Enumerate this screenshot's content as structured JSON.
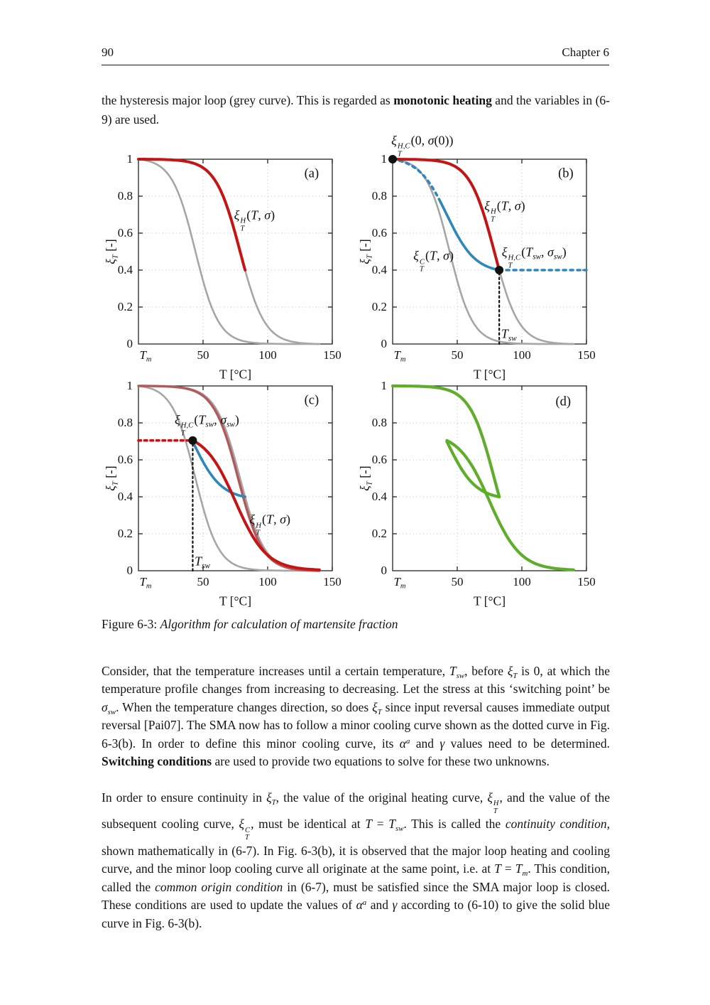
{
  "header": {
    "page_number": "90",
    "chapter": "Chapter 6"
  },
  "intro_paragraph_html": "the hysteresis major loop (grey curve).  This is regarded as <b>monotonic heating</b> and the variables in (6-9) are used.",
  "figure": {
    "caption_html": "Figure 6-3: <i>Algorithm for calculation of martensite fraction</i>"
  },
  "paragraphs_html": [
    "Consider, that the temperature increases until a certain temperature, <i>T</i><sub><i>sw</i></sub>, before <i>ξ</i><sub><i>T</i></sub> is 0, at which the temperature profile changes from increasing to decreasing. Let the stress at this ‘switching point’ be <i>σ</i><sub><i>sw</i></sub>. When the temperature changes direction, so does <i>ξ</i><sub><i>T</i></sub> since input reversal causes immediate output reversal [Pai07]. The SMA now has to follow a minor cooling curve shown as the dotted curve in Fig. 6-3(b). In order to define this minor cooling curve, its <i>α</i><sup><i>a</i></sup> and <i>γ</i> values need to be determined. <b>Switching conditions</b> are used to provide two equations to solve for these two unknowns.",
    "In order to ensure continuity in <i>ξ</i><sub><i>T</i></sub>, the value of the original heating curve, <i>ξ</i><span class='ss'><span>H</span><span>T</span></span>, and the value of the subsequent cooling curve, <i>ξ</i><span class='ss'><span>C</span><span>T</span></span>, must be identical at <i>T</i> = <i>T</i><sub><i>sw</i></sub>. This is called the <i>continuity condition</i>, shown mathematically in (6-7). In Fig. 6-3(b), it is observed that the major loop heating and cooling curve, and the minor loop cooling curve all originate at the same point, i.e. at <i>T</i> = <i>T</i><sub><i>m</i></sub>. This condition, called the <i>common origin condition</i> in (6-7), must be satisfied since the SMA major loop is closed. These conditions are used to update the values of <i>α</i><sup><i>a</i></sup> and <i>γ</i> according to (6-10) to give the solid blue curve in Fig. 6-3(b)."
  ],
  "colors": {
    "red": "#c51414",
    "faded_red": "#b2595b",
    "blue": "#2e86bb",
    "green": "#5fae2b",
    "grey": "#a6a6a6",
    "black": "#111111",
    "grid": "#bdbdbd"
  },
  "chart_data": [
    {
      "id": "a",
      "type": "line",
      "corner_label": "(a)",
      "corner_pos": [
        134,
        0.92
      ],
      "xlabel": "T [°C]",
      "ylabel_html": "<i>ξ</i><sub><i>T</i></sub> [-]",
      "xlim": [
        0,
        150
      ],
      "ylim": [
        0,
        1
      ],
      "x_ticks": [
        {
          "v": 0,
          "html": "<i>T</i><sub><i>m</i></sub>",
          "dx": 10
        },
        {
          "v": 50,
          "html": "50"
        },
        {
          "v": 100,
          "html": "100"
        },
        {
          "v": 150,
          "html": "150"
        }
      ],
      "y_ticks": [
        {
          "v": 0,
          "html": "0"
        },
        {
          "v": 0.2,
          "html": "0.2"
        },
        {
          "v": 0.4,
          "html": "0.4"
        },
        {
          "v": 0.6,
          "html": "0.6"
        },
        {
          "v": 0.8,
          "html": "0.8"
        },
        {
          "v": 1,
          "html": "1"
        }
      ],
      "x_grid": [
        50,
        100
      ],
      "y_grid": [
        0.2,
        0.4,
        0.6,
        0.8
      ],
      "curves": [
        {
          "name": "major-cooling-curve",
          "color": "grey",
          "width": 2.6,
          "model": {
            "type": "logistic",
            "c": 44,
            "s": 9,
            "from": 0,
            "to": 140,
            "y0": 1,
            "y1": 0
          }
        },
        {
          "name": "major-heating-curve",
          "color": "grey",
          "width": 2.6,
          "model": {
            "type": "logistic",
            "c": 78.7,
            "s": 9.5,
            "from": 0,
            "to": 140,
            "y0": 1,
            "y1": 0
          }
        },
        {
          "name": "active-heating-curve",
          "color": "red",
          "width": 4,
          "model": {
            "type": "logistic",
            "c": 78.7,
            "s": 9.5,
            "from": 0,
            "to": 82.5,
            "y0": 1,
            "y1": 0.4
          }
        }
      ],
      "annotations": [
        {
          "name": "heating-curve-label",
          "html": "<i>ξ</i><span class='ss'><span>H</span><span>T</span></span>(<i>T</i>, <i>σ</i>)",
          "x": 74,
          "y": 0.67,
          "anchor": "left"
        }
      ]
    },
    {
      "id": "b",
      "type": "line",
      "corner_label": "(b)",
      "corner_pos": [
        134,
        0.92
      ],
      "xlabel": "T [°C]",
      "ylabel_html": "<i>ξ</i><sub><i>T</i></sub> [-]",
      "xlim": [
        0,
        150
      ],
      "ylim": [
        0,
        1
      ],
      "x_ticks": [
        {
          "v": 0,
          "html": "<i>T</i><sub><i>m</i></sub>",
          "dx": 10
        },
        {
          "v": 50,
          "html": "50"
        },
        {
          "v": 100,
          "html": "100"
        },
        {
          "v": 150,
          "html": "150"
        }
      ],
      "y_ticks": [
        {
          "v": 0,
          "html": "0"
        },
        {
          "v": 0.2,
          "html": "0.2"
        },
        {
          "v": 0.4,
          "html": "0.4"
        },
        {
          "v": 0.6,
          "html": "0.6"
        },
        {
          "v": 0.8,
          "html": "0.8"
        },
        {
          "v": 1,
          "html": "1"
        }
      ],
      "x_grid": [
        50,
        100
      ],
      "y_grid": [
        0.2,
        0.4,
        0.6,
        0.8
      ],
      "curves": [
        {
          "name": "major-cooling-curve",
          "color": "grey",
          "width": 2.6,
          "model": {
            "type": "logistic",
            "c": 44,
            "s": 9,
            "from": 0,
            "to": 140,
            "y0": 1,
            "y1": 0
          }
        },
        {
          "name": "major-heating-curve",
          "color": "grey",
          "width": 2.6,
          "model": {
            "type": "logistic",
            "c": 78.7,
            "s": 9.5,
            "from": 0,
            "to": 140,
            "y0": 1,
            "y1": 0
          }
        },
        {
          "name": "minor-cooling-curve-dotted",
          "color": "blue",
          "width": 3.6,
          "dash": "4 6",
          "model": {
            "type": "logistic",
            "c": 42,
            "s": 11,
            "from": 0,
            "to": 37,
            "norm_from": 0,
            "norm_to": 82.5,
            "y0": 1,
            "y1": 0.4
          }
        },
        {
          "name": "minor-cooling-curve-solid",
          "color": "blue",
          "width": 3.6,
          "model": {
            "type": "logistic",
            "c": 42,
            "s": 11,
            "from": 37,
            "to": 82.5,
            "norm_from": 0,
            "norm_to": 82.5,
            "y0": 1,
            "y1": 0.4
          }
        },
        {
          "name": "active-heating-curve",
          "color": "red",
          "width": 4,
          "model": {
            "type": "logistic",
            "c": 78.7,
            "s": 9.5,
            "from": 0,
            "to": 82.5,
            "y0": 1,
            "y1": 0.4
          }
        }
      ],
      "lines": [
        {
          "name": "xi-hold-dotted-line",
          "from": [
            82.5,
            0.4
          ],
          "to": [
            150,
            0.4
          ],
          "color": "blue",
          "width": 3.6,
          "dash": "4 6"
        },
        {
          "name": "tsw-dotted-line",
          "from": [
            82.5,
            0
          ],
          "to": [
            82.5,
            0.4
          ],
          "color": "black",
          "width": 2.2,
          "dash": "2.5 4"
        }
      ],
      "points": [
        {
          "name": "origin-point",
          "x": 0,
          "y": 1,
          "r": 6,
          "color": "black"
        },
        {
          "name": "switching-point",
          "x": 82.5,
          "y": 0.4,
          "r": 6,
          "color": "black"
        }
      ],
      "annotations": [
        {
          "name": "origin-label",
          "html": "<i>ξ</i><span class='ss'><span>H,C</span><span>T</span></span>(0, <i>σ</i>(0))",
          "x": -1,
          "y": 1.075,
          "anchor": "left"
        },
        {
          "name": "heating-curve-label",
          "html": "<i>ξ</i><span class='ss'><span>H</span><span>T</span></span>(<i>T</i>, <i>σ</i>)",
          "x": 71,
          "y": 0.72,
          "anchor": "left"
        },
        {
          "name": "cooling-curve-label",
          "html": "<i>ξ</i><span class='ss'><span>C</span><span>T</span></span>(<i>T</i>, <i>σ</i>)",
          "x": 16,
          "y": 0.45,
          "anchor": "left"
        },
        {
          "name": "switching-point-label",
          "html": "<i>ξ</i><span class='ss'><span>H,C</span><span>T</span></span>(<i>T</i><sub><i>sw</i></sub>, <i>σ</i><sub><i>sw</i></sub>)",
          "x": 84.5,
          "y": 0.47,
          "anchor": "left"
        },
        {
          "name": "tsw-label",
          "html": "<i>T</i><sub><i>sw</i></sub>",
          "x": 84,
          "y": 0.055,
          "anchor": "left"
        }
      ]
    },
    {
      "id": "c",
      "type": "line",
      "corner_label": "(c)",
      "corner_pos": [
        134,
        0.92
      ],
      "xlabel": "T [°C]",
      "ylabel_html": "<i>ξ</i><sub><i>T</i></sub> [-]",
      "xlim": [
        0,
        150
      ],
      "ylim": [
        0,
        1
      ],
      "x_ticks": [
        {
          "v": 0,
          "html": "<i>T</i><sub><i>m</i></sub>",
          "dx": 10
        },
        {
          "v": 50,
          "html": "50"
        },
        {
          "v": 100,
          "html": "100"
        },
        {
          "v": 150,
          "html": "150"
        }
      ],
      "y_ticks": [
        {
          "v": 0,
          "html": "0"
        },
        {
          "v": 0.2,
          "html": "0.2"
        },
        {
          "v": 0.4,
          "html": "0.4"
        },
        {
          "v": 0.6,
          "html": "0.6"
        },
        {
          "v": 0.8,
          "html": "0.8"
        },
        {
          "v": 1,
          "html": "1"
        }
      ],
      "x_grid": [
        50,
        100
      ],
      "y_grid": [
        0.2,
        0.4,
        0.6,
        0.8
      ],
      "curves": [
        {
          "name": "major-cooling-curve",
          "color": "grey",
          "width": 2.6,
          "model": {
            "type": "logistic",
            "c": 44,
            "s": 9,
            "from": 0,
            "to": 140,
            "y0": 1,
            "y1": 0
          }
        },
        {
          "name": "major-heating-curve",
          "color": "grey",
          "width": 2.6,
          "model": {
            "type": "logistic",
            "c": 78.7,
            "s": 9.5,
            "from": 0,
            "to": 140,
            "y0": 1,
            "y1": 0
          }
        },
        {
          "name": "previous-heating-curve-faded",
          "color": "faded_red",
          "width": 3.4,
          "model": {
            "type": "logistic",
            "c": 77.2,
            "s": 9.5,
            "from": 0,
            "to": 140,
            "y0": 1,
            "y1": 0
          }
        },
        {
          "name": "minor-cooling-curve",
          "color": "blue",
          "width": 3.6,
          "model": {
            "type": "logistic",
            "c": 42,
            "s": 11,
            "from": 42,
            "to": 82.5,
            "norm_from": 0,
            "norm_to": 82.5,
            "y0": 1,
            "y1": 0.4
          }
        },
        {
          "name": "updated-heating-curve",
          "color": "red",
          "width": 4,
          "model": {
            "type": "logistic",
            "c": 75,
            "s": 12,
            "from": 42,
            "to": 140,
            "y0": 0.705,
            "y1": 0.005
          }
        }
      ],
      "lines": [
        {
          "name": "xi-hold-dotted-line",
          "from": [
            0,
            0.705
          ],
          "to": [
            42,
            0.705
          ],
          "color": "red",
          "width": 3.6,
          "dash": "3.5 5"
        },
        {
          "name": "tsw-dotted-line",
          "from": [
            42,
            0
          ],
          "to": [
            42,
            0.705
          ],
          "color": "black",
          "width": 2.2,
          "dash": "2.5 4"
        }
      ],
      "points": [
        {
          "name": "switching-point",
          "x": 42,
          "y": 0.705,
          "r": 6,
          "color": "black"
        }
      ],
      "annotations": [
        {
          "name": "switching-point-label",
          "html": "<i>ξ</i><span class='ss'><span>H,C</span><span>T</span></span>(<i>T</i><sub><i>sw</i></sub>, <i>σ</i><sub><i>sw</i></sub>)",
          "x": 28,
          "y": 0.79,
          "anchor": "left"
        },
        {
          "name": "tsw-label",
          "html": "<i>T</i><sub><i>sw</i></sub>",
          "x": 43.5,
          "y": 0.05,
          "anchor": "left"
        },
        {
          "name": "heating-curve-label",
          "html": "<i>ξ</i><span class='ss'><span>H</span><span>T</span></span>(<i>T</i>, <i>σ</i>)",
          "x": 86,
          "y": 0.25,
          "anchor": "left"
        }
      ]
    },
    {
      "id": "d",
      "type": "line",
      "corner_label": "(d)",
      "corner_pos": [
        132,
        0.91
      ],
      "xlabel": "T [°C]",
      "ylabel_html": "<i>ξ</i><sub><i>T</i></sub> [-]",
      "xlim": [
        0,
        150
      ],
      "ylim": [
        0,
        1
      ],
      "x_ticks": [
        {
          "v": 0,
          "html": "<i>T</i><sub><i>m</i></sub>",
          "dx": 10
        },
        {
          "v": 50,
          "html": "50"
        },
        {
          "v": 100,
          "html": "100"
        },
        {
          "v": 150,
          "html": "150"
        }
      ],
      "y_ticks": [
        {
          "v": 0,
          "html": "0"
        },
        {
          "v": 0.2,
          "html": "0.2"
        },
        {
          "v": 0.4,
          "html": "0.4"
        },
        {
          "v": 0.6,
          "html": "0.6"
        },
        {
          "v": 0.8,
          "html": "0.8"
        },
        {
          "v": 1,
          "html": "1"
        }
      ],
      "x_grid": [
        50,
        100
      ],
      "y_grid": [
        0.2,
        0.4,
        0.6,
        0.8
      ],
      "curves": [
        {
          "name": "trajectory-heating-segment",
          "color": "green",
          "width": 4.2,
          "model": {
            "type": "logistic",
            "c": 78.7,
            "s": 9.5,
            "from": 0,
            "to": 82.5,
            "y0": 1,
            "y1": 0.4
          }
        },
        {
          "name": "trajectory-minor-cooling-segment",
          "color": "green",
          "width": 4.2,
          "model": {
            "type": "logistic",
            "c": 42,
            "s": 11,
            "from": 42,
            "to": 82.5,
            "norm_from": 0,
            "norm_to": 82.5,
            "y0": 1,
            "y1": 0.4
          }
        },
        {
          "name": "trajectory-updated-heating-segment",
          "color": "green",
          "width": 4.2,
          "model": {
            "type": "logistic",
            "c": 75,
            "s": 12,
            "from": 42,
            "to": 140,
            "y0": 0.705,
            "y1": 0.005
          }
        }
      ]
    }
  ]
}
